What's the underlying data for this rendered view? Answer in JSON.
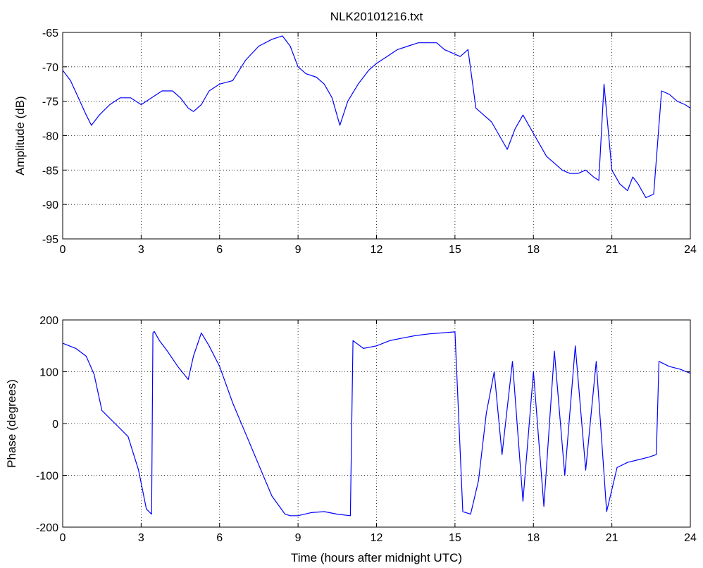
{
  "chart_data": [
    {
      "type": "line",
      "title": "NLK20101216.txt",
      "xlabel": "",
      "ylabel": "Amplitude (dB)",
      "xlim": [
        0,
        24
      ],
      "ylim": [
        -95,
        -65
      ],
      "xticks": [
        0,
        3,
        6,
        9,
        12,
        15,
        18,
        21,
        24
      ],
      "yticks": [
        -95,
        -90,
        -85,
        -80,
        -75,
        -70,
        -65
      ],
      "grid": true,
      "line_color": "#0000ff",
      "series": [
        {
          "x": [
            0,
            0.3,
            0.6,
            0.9,
            1.1,
            1.4,
            1.8,
            2.2,
            2.6,
            3.0,
            3.4,
            3.8,
            4.2,
            4.5,
            4.8,
            5.0,
            5.3,
            5.6,
            6.0,
            6.5,
            7.0,
            7.5,
            8.0,
            8.4,
            8.7,
            9.0,
            9.3,
            9.7,
            10.0,
            10.3,
            10.6,
            10.9,
            11.3,
            11.7,
            12.0,
            12.4,
            12.8,
            13.2,
            13.6,
            14.0,
            14.3,
            14.6,
            14.9,
            15.2,
            15.5,
            15.8,
            16.1,
            16.4,
            16.7,
            17.0,
            17.3,
            17.6,
            17.9,
            18.2,
            18.5,
            18.8,
            19.1,
            19.4,
            19.7,
            20.0,
            20.3,
            20.5,
            20.7,
            21.0,
            21.3,
            21.6,
            21.8,
            22.0,
            22.3,
            22.6,
            22.9,
            23.2,
            23.5,
            23.8,
            24.0
          ],
          "values": [
            -70.5,
            -72,
            -74.5,
            -77,
            -78.5,
            -77,
            -75.5,
            -74.5,
            -74.5,
            -75.5,
            -74.5,
            -73.5,
            -73.5,
            -74.5,
            -76,
            -76.5,
            -75.5,
            -73.5,
            -72.5,
            -72,
            -69,
            -67,
            -66,
            -65.5,
            -67,
            -70,
            -71,
            -71.5,
            -72.5,
            -74.5,
            -78.5,
            -75,
            -72.5,
            -70.5,
            -69.5,
            -68.5,
            -67.5,
            -67,
            -66.5,
            -66.5,
            -66.5,
            -67.5,
            -68,
            -68.5,
            -67.5,
            -76,
            -77,
            -78,
            -80,
            -82,
            -79,
            -77,
            -79,
            -81,
            -83,
            -84,
            -85,
            -85.5,
            -85.5,
            -85,
            -86,
            -86.5,
            -72.5,
            -85,
            -87,
            -88,
            -86,
            -87,
            -89,
            -88.5,
            -73.5,
            -74,
            -75,
            -75.5,
            -76
          ]
        }
      ]
    },
    {
      "type": "line",
      "title": "",
      "xlabel": "Time (hours after midnight UTC)",
      "ylabel": "Phase (degrees)",
      "xlim": [
        0,
        24
      ],
      "ylim": [
        -200,
        200
      ],
      "xticks": [
        0,
        3,
        6,
        9,
        12,
        15,
        18,
        21,
        24
      ],
      "yticks": [
        -200,
        -100,
        0,
        100,
        200
      ],
      "grid": true,
      "line_color": "#0000ff",
      "series": [
        {
          "x": [
            0,
            0.5,
            0.9,
            1.2,
            1.5,
            2.0,
            2.5,
            2.9,
            3.2,
            3.4,
            3.45,
            3.5,
            3.7,
            4.0,
            4.4,
            4.8,
            5.0,
            5.3,
            5.6,
            6.0,
            6.5,
            7.0,
            7.5,
            8.0,
            8.5,
            8.7,
            9.0,
            9.5,
            10.0,
            10.5,
            11.0,
            11.1,
            11.5,
            12.0,
            12.5,
            13.0,
            13.5,
            14.0,
            14.5,
            15.0,
            15.3,
            15.6,
            15.9,
            16.2,
            16.5,
            16.8,
            17.2,
            17.6,
            18.0,
            18.4,
            18.8,
            19.2,
            19.6,
            20.0,
            20.4,
            20.8,
            21.2,
            21.6,
            22.0,
            22.4,
            22.7,
            22.8,
            23.2,
            23.6,
            24.0
          ],
          "values": [
            155,
            145,
            130,
            95,
            25,
            0,
            -25,
            -90,
            -165,
            -175,
            175,
            178,
            160,
            140,
            110,
            85,
            130,
            175,
            150,
            110,
            40,
            -20,
            -80,
            -140,
            -175,
            -178,
            -178,
            -172,
            -170,
            -175,
            -178,
            160,
            145,
            150,
            160,
            165,
            170,
            173,
            175,
            177,
            -170,
            -175,
            -110,
            20,
            100,
            -60,
            120,
            -150,
            100,
            -160,
            140,
            -100,
            150,
            -90,
            120,
            -170,
            -85,
            -75,
            -70,
            -65,
            -60,
            120,
            110,
            105,
            97
          ]
        }
      ]
    }
  ]
}
